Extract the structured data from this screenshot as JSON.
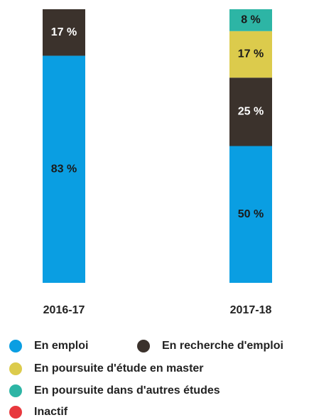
{
  "chart_data": {
    "type": "stacked_bar",
    "categories": [
      "2016-17",
      "2017-18"
    ],
    "series": [
      {
        "name": "En emploi",
        "color": "#0a9ee2",
        "label_color": "#1a1a1a",
        "values": [
          83,
          50
        ],
        "value_labels": [
          "83 %",
          "50 %"
        ]
      },
      {
        "name": "En recherche d'emploi",
        "color": "#3b322c",
        "label_color": "#ffffff",
        "values": [
          17,
          25
        ],
        "value_labels": [
          "17 %",
          "25 %"
        ]
      },
      {
        "name": "En poursuite d'étude en master",
        "color": "#dccb4c",
        "label_color": "#1a1a1a",
        "values": [
          0,
          17
        ],
        "value_labels": [
          null,
          "17 %"
        ]
      },
      {
        "name": "En poursuite dans d'autres études",
        "color": "#2db5a5",
        "label_color": "#1a1a1a",
        "values": [
          0,
          8
        ],
        "value_labels": [
          null,
          "8 %"
        ]
      },
      {
        "name": "Inactif",
        "color": "#e8383d",
        "label_color": "#1a1a1a",
        "values": [
          0,
          0
        ],
        "value_labels": [
          null,
          null
        ]
      }
    ]
  }
}
